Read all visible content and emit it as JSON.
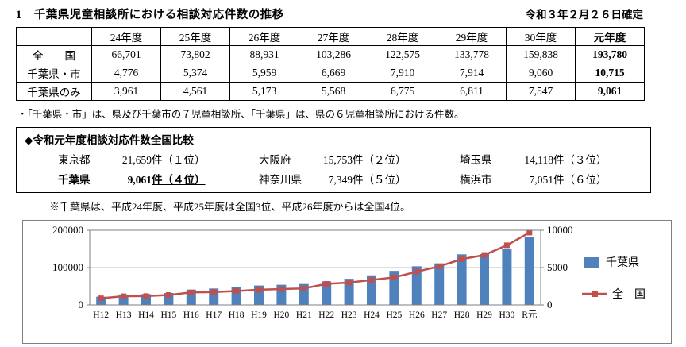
{
  "header": {
    "title": "1　千葉県児童相談所における相談対応件数の推移",
    "date_note": "令和３年２月２６日確定"
  },
  "table": {
    "col_headers": [
      "",
      "24年度",
      "25年度",
      "26年度",
      "27年度",
      "28年度",
      "29年度",
      "30年度",
      "元年度"
    ],
    "rows": [
      {
        "label": "全　　国",
        "values": [
          "66,701",
          "73,802",
          "88,931",
          "103,286",
          "122,575",
          "133,778",
          "159,838",
          "193,780"
        ]
      },
      {
        "label": "千葉県・市",
        "values": [
          "4,776",
          "5,374",
          "5,959",
          "6,669",
          "7,910",
          "7,914",
          "9,060",
          "10,715"
        ]
      },
      {
        "label": "千葉県のみ",
        "values": [
          "3,961",
          "4,561",
          "5,173",
          "5,568",
          "6,775",
          "6,811",
          "7,547",
          "9,061"
        ]
      }
    ]
  },
  "note": "・「千葉県・市」は、県及び千葉市の７児童相談所、「千葉県」は、県の６児童相談所における件数。",
  "comparison_box": {
    "heading": "◆令和元年度相談対応件数全国比較",
    "entries": [
      {
        "name": "東京都",
        "count": "21,659",
        "suffix": "件（１位）",
        "highlight": false
      },
      {
        "name": "大阪府",
        "count": "15,753",
        "suffix": "件（２位）",
        "highlight": false
      },
      {
        "name": "埼玉県",
        "count": "14,118",
        "suffix": "件（３位）",
        "highlight": false
      },
      {
        "name": "千葉県",
        "count": "9,061",
        "suffix": "件（４位）",
        "highlight": true
      },
      {
        "name": "神奈川県",
        "count": "7,349",
        "suffix": "件（５位）",
        "highlight": false
      },
      {
        "name": "横浜市",
        "count": "7,051",
        "suffix": "件（６位）",
        "highlight": false
      }
    ]
  },
  "rank_note": "※千葉県は、平成24年度、平成25年度は全国3位、平成26年度からは全国4位。",
  "chart_data": {
    "type": "bar+line",
    "categories": [
      "H12",
      "H13",
      "H14",
      "H15",
      "H16",
      "H17",
      "H18",
      "H19",
      "H20",
      "H21",
      "H22",
      "H23",
      "H24",
      "H25",
      "H26",
      "H27",
      "H28",
      "H29",
      "H30",
      "R元"
    ],
    "series": [
      {
        "name": "千葉県",
        "type": "bar",
        "axis": "right",
        "color": "#4f81bd",
        "values": [
          1100,
          1400,
          1450,
          1600,
          2050,
          2200,
          2350,
          2600,
          2700,
          2800,
          3150,
          3500,
          3961,
          4561,
          5173,
          5568,
          6775,
          6811,
          7547,
          9061
        ]
      },
      {
        "name": "全　国",
        "type": "line",
        "axis": "left",
        "color": "#c0504d",
        "values": [
          17725,
          23274,
          23738,
          26569,
          33408,
          34472,
          37323,
          40639,
          42664,
          44211,
          56384,
          59919,
          66701,
          73802,
          88931,
          103286,
          122575,
          133778,
          159838,
          193780
        ]
      }
    ],
    "left_axis": {
      "min": 0,
      "max": 200000,
      "ticks": [
        0,
        100000,
        200000
      ],
      "tick_labels": [
        "0",
        "100000",
        "200000"
      ]
    },
    "right_axis": {
      "min": 0,
      "max": 10000,
      "ticks": [
        0,
        5000,
        10000
      ],
      "tick_labels": [
        "0",
        "5000",
        "10000"
      ]
    },
    "legend": [
      "千葉県",
      "全　国"
    ],
    "grid": true,
    "legend_position": "right"
  }
}
